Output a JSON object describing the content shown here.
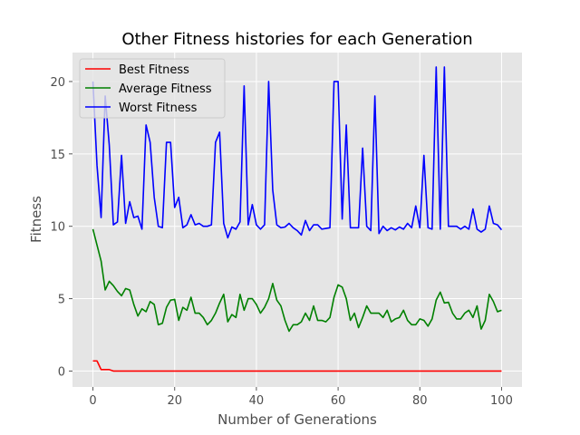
{
  "chart_data": {
    "type": "line",
    "title": "Other Fitness histories for each Generation",
    "xlabel": "Number of Generations",
    "ylabel": "Fitness",
    "xlim": [
      -5,
      105
    ],
    "ylim": [
      -1.1,
      22.0
    ],
    "xticks": [
      0,
      20,
      40,
      60,
      80,
      100
    ],
    "yticks": [
      0,
      5,
      10,
      15,
      20
    ],
    "grid": true,
    "legend_position": "top-left",
    "x": [
      0,
      1,
      2,
      3,
      4,
      5,
      6,
      7,
      8,
      9,
      10,
      11,
      12,
      13,
      14,
      15,
      16,
      17,
      18,
      19,
      20,
      21,
      22,
      23,
      24,
      25,
      26,
      27,
      28,
      29,
      30,
      31,
      32,
      33,
      34,
      35,
      36,
      37,
      38,
      39,
      40,
      41,
      42,
      43,
      44,
      45,
      46,
      47,
      48,
      49,
      50,
      51,
      52,
      53,
      54,
      55,
      56,
      57,
      58,
      59,
      60,
      61,
      62,
      63,
      64,
      65,
      66,
      67,
      68,
      69,
      70,
      71,
      72,
      73,
      74,
      75,
      76,
      77,
      78,
      79,
      80,
      81,
      82,
      83,
      84,
      85,
      86,
      87,
      88,
      89,
      90,
      91,
      92,
      93,
      94,
      95,
      96,
      97,
      98,
      99,
      100
    ],
    "series": [
      {
        "name": "Best Fitness",
        "color": "#ff0000",
        "values": [
          0.7,
          0.7,
          0.1,
          0.1,
          0.1,
          0,
          0,
          0,
          0,
          0,
          0,
          0,
          0,
          0,
          0,
          0,
          0,
          0,
          0,
          0,
          0,
          0,
          0,
          0,
          0,
          0,
          0,
          0,
          0,
          0,
          0,
          0,
          0,
          0,
          0,
          0,
          0,
          0,
          0,
          0,
          0,
          0,
          0,
          0,
          0,
          0,
          0,
          0,
          0,
          0,
          0,
          0,
          0,
          0,
          0,
          0,
          0,
          0,
          0,
          0,
          0,
          0,
          0,
          0,
          0,
          0,
          0,
          0,
          0,
          0,
          0,
          0,
          0,
          0,
          0,
          0,
          0,
          0,
          0,
          0,
          0,
          0,
          0,
          0,
          0,
          0,
          0,
          0,
          0,
          0,
          0,
          0,
          0,
          0,
          0,
          0,
          0,
          0,
          0,
          0,
          0
        ]
      },
      {
        "name": "Average Fitness",
        "color": "#008000",
        "values": [
          9.8,
          8.7,
          7.6,
          5.6,
          6.2,
          5.9,
          5.5,
          5.2,
          5.7,
          5.6,
          4.6,
          3.8,
          4.3,
          4.1,
          4.8,
          4.6,
          3.2,
          3.3,
          4.4,
          4.9,
          4.95,
          3.5,
          4.4,
          4.2,
          5.1,
          4.0,
          4.0,
          3.7,
          3.2,
          3.5,
          4.0,
          4.7,
          5.3,
          3.4,
          3.9,
          3.7,
          5.3,
          4.2,
          5.0,
          5.0,
          4.6,
          4.0,
          4.4,
          5.0,
          6.05,
          4.9,
          4.5,
          3.5,
          2.75,
          3.2,
          3.2,
          3.4,
          4.0,
          3.5,
          4.5,
          3.5,
          3.5,
          3.4,
          3.7,
          5.1,
          5.95,
          5.8,
          5.0,
          3.5,
          4.0,
          3.0,
          3.7,
          4.5,
          4.0,
          4.0,
          4.0,
          3.7,
          4.2,
          3.4,
          3.6,
          3.7,
          4.2,
          3.5,
          3.2,
          3.2,
          3.6,
          3.5,
          3.1,
          3.6,
          4.9,
          5.45,
          4.7,
          4.75,
          4.0,
          3.6,
          3.6,
          4.0,
          4.2,
          3.7,
          4.5,
          2.9,
          3.5,
          5.3,
          4.8,
          4.1,
          4.2
        ]
      },
      {
        "name": "Worst Fitness",
        "color": "#0000ff",
        "values": [
          20.0,
          14.2,
          10.6,
          19.0,
          15.6,
          10.1,
          10.3,
          14.9,
          10.2,
          11.7,
          10.6,
          10.7,
          9.8,
          17.0,
          15.8,
          12.0,
          10.0,
          9.9,
          15.8,
          15.8,
          11.3,
          12.0,
          9.9,
          10.1,
          10.8,
          10.1,
          10.2,
          10.0,
          10.0,
          10.1,
          15.8,
          16.5,
          10.2,
          9.2,
          9.95,
          9.8,
          10.3,
          19.7,
          10.1,
          11.5,
          10.1,
          9.8,
          10.1,
          20.0,
          12.5,
          10.1,
          9.9,
          9.95,
          10.2,
          9.9,
          9.7,
          9.4,
          10.4,
          9.7,
          10.1,
          10.1,
          9.8,
          9.85,
          9.9,
          20.0,
          20.0,
          10.5,
          17.0,
          9.9,
          9.9,
          9.9,
          15.4,
          10.0,
          9.7,
          19.0,
          9.5,
          10.0,
          9.7,
          9.9,
          9.75,
          9.95,
          9.8,
          10.2,
          9.9,
          11.4,
          9.9,
          14.9,
          9.9,
          9.8,
          21.0,
          9.8,
          21.0,
          10.0,
          10.0,
          10.0,
          9.8,
          10.0,
          9.8,
          11.2,
          9.8,
          9.6,
          9.8,
          11.4,
          10.2,
          10.1,
          9.75
        ]
      }
    ]
  }
}
